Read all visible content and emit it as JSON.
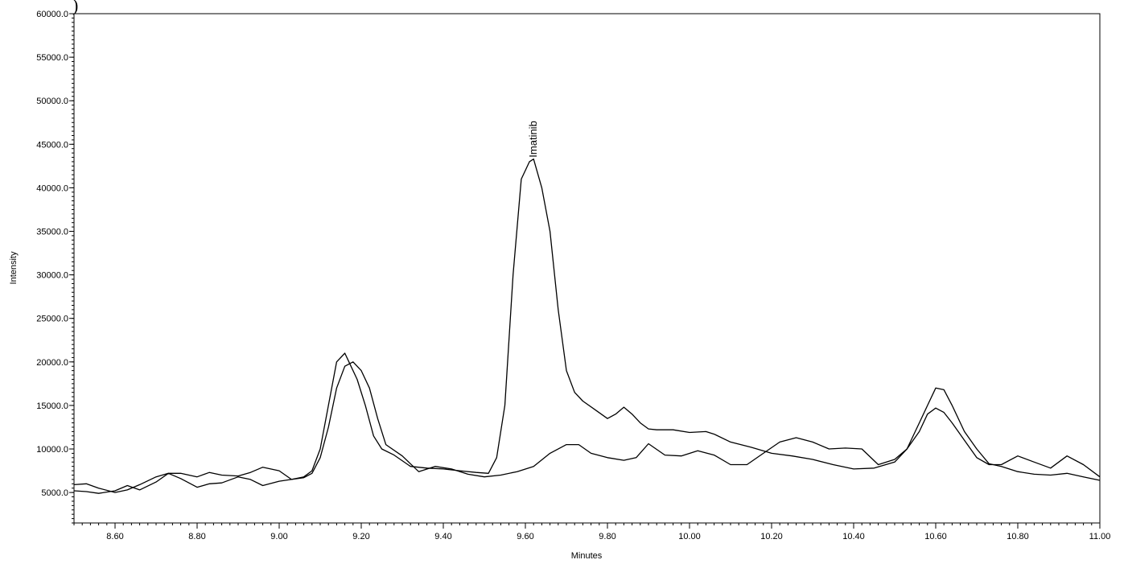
{
  "panel_label": ")",
  "chart_data": {
    "type": "line",
    "title": "",
    "xlabel": "Minutes",
    "ylabel": "Intensity",
    "xlim": [
      8.5,
      11.0
    ],
    "ylim": [
      1500,
      60000
    ],
    "grid": false,
    "x_ticks": [
      8.6,
      8.8,
      9.0,
      9.2,
      9.4,
      9.6,
      9.8,
      10.0,
      10.2,
      10.4,
      10.6,
      10.8,
      11.0
    ],
    "x_tick_labels": [
      "8.60",
      "8.80",
      "9.00",
      "9.20",
      "9.40",
      "9.60",
      "9.80",
      "10.00",
      "10.20",
      "10.40",
      "10.60",
      "10.80",
      "11.00"
    ],
    "y_ticks": [
      5000,
      10000,
      15000,
      20000,
      25000,
      30000,
      35000,
      40000,
      45000,
      50000,
      55000,
      60000
    ],
    "y_tick_labels": [
      "5000.0",
      "10000.0",
      "15000.0",
      "20000.0",
      "25000.0",
      "30000.0",
      "35000.0",
      "40000.0",
      "45000.0",
      "50000.0",
      "55000.0",
      "60000.0"
    ],
    "line_color": "#000000",
    "series": [
      {
        "x": [
          8.5,
          8.53,
          8.56,
          8.6,
          8.63,
          8.66,
          8.7,
          8.73,
          8.76,
          8.8,
          8.83,
          8.86,
          8.9,
          8.93,
          8.96,
          9.0,
          9.03,
          9.06,
          9.08,
          9.1,
          9.12,
          9.14,
          9.16,
          9.17,
          9.19,
          9.21,
          9.23,
          9.25,
          9.28,
          9.32,
          9.36,
          9.4,
          9.44,
          9.48,
          9.51,
          9.53,
          9.55,
          9.57,
          9.59,
          9.61,
          9.62,
          9.64,
          9.66,
          9.68,
          9.7,
          9.72,
          9.74,
          9.77,
          9.8,
          9.82,
          9.84,
          9.86,
          9.88,
          9.9,
          9.92,
          9.96,
          10.0,
          10.04,
          10.06,
          10.1,
          10.15,
          10.2,
          10.25,
          10.3,
          10.35,
          10.4,
          10.45,
          10.5,
          10.53,
          10.56,
          10.58,
          10.6,
          10.62,
          10.64,
          10.67,
          10.7,
          10.73,
          10.76,
          10.8,
          10.84,
          10.88,
          10.92,
          10.96,
          11.0
        ],
        "y": [
          5900,
          6000,
          5500,
          5000,
          5300,
          5900,
          6800,
          7200,
          7200,
          6800,
          7300,
          7000,
          6900,
          7300,
          7900,
          7500,
          6500,
          6800,
          7500,
          10000,
          15000,
          20000,
          21000,
          20000,
          18000,
          15000,
          11500,
          10000,
          9300,
          8000,
          7800,
          7700,
          7500,
          7300,
          7200,
          9000,
          15000,
          30000,
          41000,
          43000,
          43300,
          40000,
          35000,
          26000,
          19000,
          16500,
          15500,
          14500,
          13500,
          14000,
          14800,
          14000,
          13000,
          12300,
          12200,
          12200,
          11900,
          12000,
          11700,
          10800,
          10200,
          9500,
          9200,
          8800,
          8200,
          7700,
          7800,
          8500,
          10000,
          13000,
          15000,
          17000,
          16800,
          15000,
          12000,
          10000,
          8300,
          8000,
          7400,
          7100,
          7000,
          7200,
          6800,
          6400
        ]
      },
      {
        "x": [
          8.5,
          8.53,
          8.56,
          8.6,
          8.63,
          8.66,
          8.7,
          8.73,
          8.76,
          8.8,
          8.83,
          8.86,
          8.9,
          8.93,
          8.96,
          9.0,
          9.03,
          9.06,
          9.08,
          9.1,
          9.12,
          9.14,
          9.16,
          9.18,
          9.2,
          9.22,
          9.24,
          9.26,
          9.3,
          9.34,
          9.38,
          9.42,
          9.46,
          9.5,
          9.54,
          9.58,
          9.62,
          9.66,
          9.7,
          9.73,
          9.76,
          9.8,
          9.84,
          9.87,
          9.9,
          9.94,
          9.98,
          10.02,
          10.06,
          10.1,
          10.14,
          10.18,
          10.22,
          10.26,
          10.3,
          10.34,
          10.38,
          10.42,
          10.46,
          10.5,
          10.53,
          10.56,
          10.58,
          10.6,
          10.62,
          10.64,
          10.67,
          10.7,
          10.73,
          10.76,
          10.8,
          10.84,
          10.88,
          10.92,
          10.96,
          11.0
        ],
        "y": [
          5200,
          5100,
          4900,
          5200,
          5800,
          5300,
          6200,
          7200,
          6600,
          5600,
          6000,
          6100,
          6800,
          6500,
          5800,
          6300,
          6500,
          6700,
          7200,
          9000,
          12500,
          17000,
          19500,
          20000,
          19000,
          17000,
          13500,
          10500,
          9200,
          7400,
          8000,
          7700,
          7100,
          6800,
          7000,
          7400,
          8000,
          9500,
          10500,
          10500,
          9500,
          9000,
          8700,
          9000,
          10600,
          9300,
          9200,
          9800,
          9300,
          8200,
          8200,
          9500,
          10800,
          11300,
          10800,
          10000,
          10100,
          10000,
          8200,
          8800,
          10000,
          12000,
          14000,
          14700,
          14200,
          13000,
          11000,
          9000,
          8200,
          8200,
          9200,
          8500,
          7800,
          9200,
          8200,
          6800
        ]
      }
    ],
    "annotations": [
      {
        "text": "Imatinib",
        "x": 9.62,
        "y": 43300
      }
    ]
  }
}
